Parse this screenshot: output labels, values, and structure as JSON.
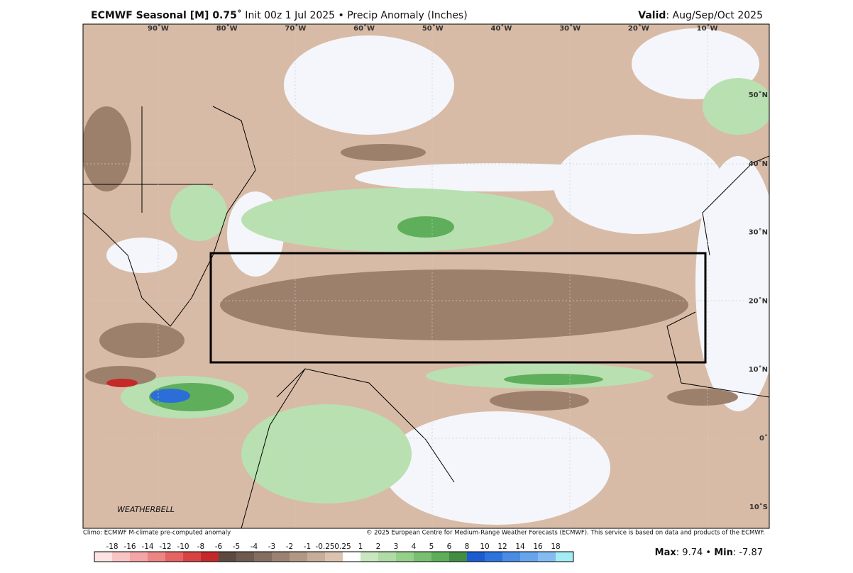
{
  "header": {
    "title_bold": "ECMWF Seasonal [M] 0.75˚",
    "title_rest": " Init 00z 1 Jul 2025 • Precip Anomaly (Inches)",
    "valid_label": "Valid",
    "valid_value": ": Aug/Sep/Oct 2025"
  },
  "map": {
    "lon_labels": [
      "90˚W",
      "80˚W",
      "70˚W",
      "60˚W",
      "50˚W",
      "40˚W",
      "30˚W",
      "20˚W",
      "10˚W"
    ],
    "lat_labels": [
      "50˚N",
      "40˚N",
      "30˚N",
      "20˚N",
      "10˚N",
      "0˚",
      "10˚S"
    ],
    "logo": "WEATHERBELL"
  },
  "footer": {
    "left": "Climo: ECMWF M-climate pre-computed anomaly",
    "right": "© 2025 European Centre for Medium-Range Weather Forecasts (ECMWF). This service is based on data and products of the ECMWF."
  },
  "legend": {
    "labels": [
      "-18",
      "-16",
      "-14",
      "-12",
      "-10",
      "-8",
      "-6",
      "-5",
      "-4",
      "-3",
      "-2",
      "-1",
      "-0.25",
      "0.25",
      "1",
      "2",
      "3",
      "4",
      "5",
      "6",
      "8",
      "10",
      "12",
      "14",
      "16",
      "18"
    ],
    "colors": [
      "#fde3e3",
      "#f9c4c4",
      "#f4a5a5",
      "#ee8585",
      "#e46464",
      "#d84444",
      "#c42828",
      "#5c4a40",
      "#6e5a4e",
      "#846e60",
      "#9a8272",
      "#b09886",
      "#c6ae9a",
      "#dac4b0",
      "#ffffff",
      "#c8e6c0",
      "#aedca4",
      "#94d08a",
      "#78c070",
      "#5cae58",
      "#428c44",
      "#1c5cd0",
      "#2c74dc",
      "#4a8ce4",
      "#68a4ec",
      "#84bcf2",
      "#a4ecf6"
    ]
  },
  "stats": {
    "max_label": "Max",
    "max_value": ": 9.74",
    "separator": " • ",
    "min_label": "Min",
    "min_value": ": -7.87"
  }
}
